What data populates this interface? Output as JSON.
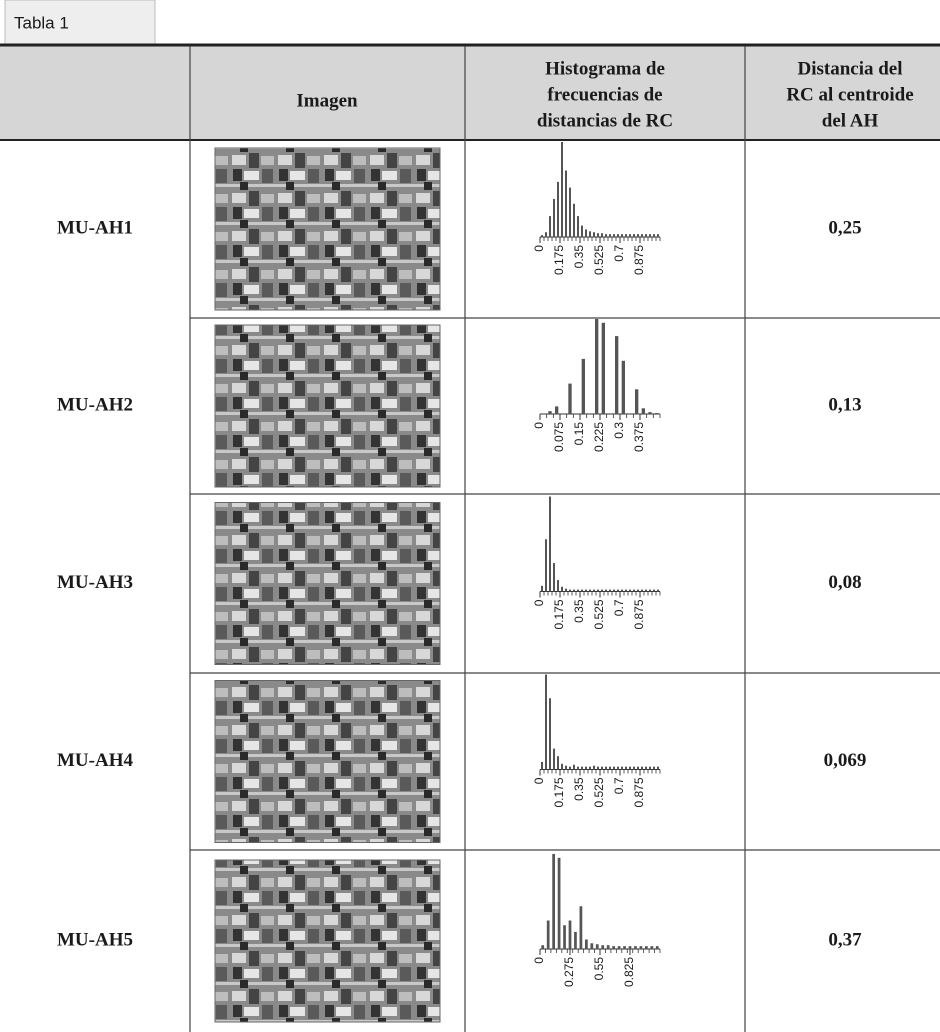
{
  "tab": "Tabla 1",
  "header": {
    "image": "Imagen",
    "histogram": [
      "Histograma de",
      "frecuencias de",
      "distancias de RC"
    ],
    "distance": [
      "Distancia del",
      "RC al centroide",
      "del AH"
    ]
  },
  "rows": [
    {
      "label": "MU-AH1",
      "distance": "0,25",
      "histogram": {
        "xlim": [
          0,
          1.05
        ],
        "xticks": [
          0,
          0.175,
          0.35,
          0.525,
          0.7,
          0.875
        ],
        "values": [
          2,
          5,
          22,
          40,
          58,
          100,
          70,
          52,
          35,
          22,
          12,
          8,
          6,
          5,
          4,
          4,
          3,
          3,
          3,
          3,
          3,
          3,
          3,
          3,
          3,
          3,
          3,
          3,
          3,
          3
        ]
      }
    },
    {
      "label": "MU-AH2",
      "distance": "0,13",
      "histogram": {
        "xlim": [
          0,
          0.45
        ],
        "xticks": [
          0,
          0.075,
          0.15,
          0.225,
          0.3,
          0.375
        ],
        "values": [
          0,
          3,
          8,
          0,
          32,
          0,
          58,
          0,
          100,
          96,
          0,
          82,
          56,
          0,
          26,
          6,
          2,
          1
        ]
      }
    },
    {
      "label": "MU-AH3",
      "distance": "0,08",
      "histogram": {
        "xlim": [
          0,
          1.05
        ],
        "xticks": [
          0,
          0.175,
          0.35,
          0.525,
          0.7,
          0.875
        ],
        "values": [
          6,
          55,
          100,
          30,
          12,
          5,
          3,
          2,
          2,
          2,
          2,
          2,
          2,
          2,
          2,
          2,
          2,
          2,
          2,
          2,
          2,
          2,
          2,
          2,
          2,
          2,
          2,
          2,
          2,
          2
        ]
      }
    },
    {
      "label": "MU-AH4",
      "distance": "0,069",
      "histogram": {
        "xlim": [
          0,
          1.05
        ],
        "xticks": [
          0,
          0.175,
          0.35,
          0.525,
          0.7,
          0.875
        ],
        "values": [
          8,
          100,
          75,
          22,
          14,
          6,
          4,
          3,
          5,
          3,
          3,
          3,
          3,
          4,
          3,
          3,
          3,
          3,
          3,
          3,
          3,
          3,
          3,
          3,
          3,
          3,
          3,
          3,
          3,
          3
        ]
      }
    },
    {
      "label": "MU-AH5",
      "distance": "0,37",
      "histogram": {
        "xlim": [
          0,
          1.1
        ],
        "xticks": [
          0,
          0.275,
          0.55,
          0.825
        ],
        "values": [
          4,
          30,
          100,
          96,
          25,
          30,
          18,
          45,
          10,
          6,
          5,
          4,
          4,
          3,
          3,
          3,
          3,
          3,
          3,
          3,
          3,
          3
        ]
      }
    }
  ]
}
